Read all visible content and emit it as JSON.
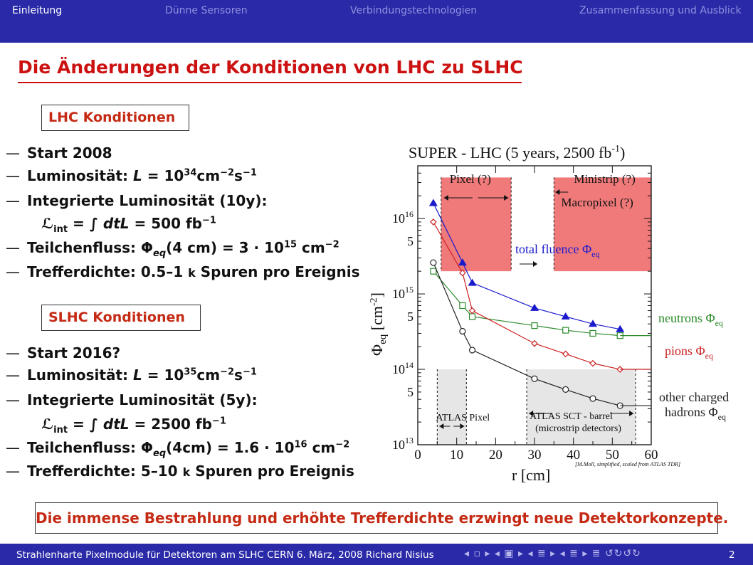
{
  "nav": {
    "items": [
      "Einleitung",
      "Dünne Sensoren",
      "Verbindungstechnologien",
      "Zusammenfassung und Ausblick"
    ],
    "active": "Einleitung"
  },
  "title": "Die Änderungen der Konditionen von LHC zu SLHC",
  "lhc": {
    "header": "LHC Konditionen",
    "start": "Start 2008",
    "lumi_label": "Luminosität:",
    "lumi_symbol": "L",
    "lumi_base": "10",
    "lumi_exp": "34",
    "lumi_unit_cm": "cm",
    "lumi_unit_cm_exp": "−2",
    "lumi_unit_s": "s",
    "lumi_unit_s_exp": "−1",
    "int_label": "Integrierte Luminosität (10y):",
    "int_symbol": "ℒ",
    "int_sub": "int",
    "int_integral": "= ∫ dtL =",
    "int_value": "500",
    "int_unit": "fb",
    "int_unit_exp": "−1",
    "flux_label": "Teilchenfluss:",
    "flux_symbol": "Φ",
    "flux_sub": "eq",
    "flux_arg": "(4 cm) = 3 · 10",
    "flux_exp": "15",
    "flux_unit": "cm",
    "flux_unit_exp": "−2",
    "hit_label": "Trefferdichte: 0.5–1",
    "hit_k": "k",
    "hit_rest": "Spuren pro Ereignis"
  },
  "slhc": {
    "header": "SLHC Konditionen",
    "start": "Start 2016?",
    "lumi_label": "Luminosität:",
    "lumi_symbol": "L",
    "lumi_base": "10",
    "lumi_exp": "35",
    "lumi_unit_cm": "cm",
    "lumi_unit_cm_exp": "−2",
    "lumi_unit_s": "s",
    "lumi_unit_s_exp": "−1",
    "int_label": "Integrierte Luminosität (5y):",
    "int_symbol": "ℒ",
    "int_sub": "int",
    "int_integral": "= ∫ dtL =",
    "int_value": "2500",
    "int_unit": "fb",
    "int_unit_exp": "−1",
    "flux_label": "Teilchenfluss:",
    "flux_symbol": "Φ",
    "flux_sub": "eq",
    "flux_arg": "(4cm) = 1.6 · 10",
    "flux_exp": "16",
    "flux_unit": "cm",
    "flux_unit_exp": "−2",
    "hit_label": "Trefferdichte: 5–10",
    "hit_k": "k",
    "hit_rest": "Spuren pro Ereignis"
  },
  "conclusion": "Die immense Bestrahlung und erhöhte Trefferdichte erzwingt neue Detektorkonzepte.",
  "footer": {
    "text": "Strahlenharte Pixelmodule für Detektoren am SLHC  CERN  6. März, 2008  Richard Nisius",
    "nav_symbols": "◂ ▫ ▸ ◂ ▣ ▸ ◂ ≣ ▸ ◂ ≣ ▸   ≣   ↺↻↺↻",
    "page": "2"
  },
  "colors": {
    "bar": "#2a2aa8",
    "title": "#cc1111",
    "total": "#1a1acc",
    "neutrons": "#2a8a2a",
    "pions": "#cc2222",
    "other": "#222222",
    "region_red": "#f07a7a",
    "region_gray": "#e6e6e6"
  },
  "chart_data": {
    "type": "line",
    "title": "SUPER - LHC (5 years, 2500 fb",
    "title_exp": "-1",
    "title_close": ")",
    "xlabel": "r [cm]",
    "ylabel_symbol": "Φ",
    "ylabel_sub": "eq",
    "ylabel_rest": " [cm",
    "ylabel_exp": "-2",
    "ylabel_close": "]",
    "xlim": [
      0,
      60
    ],
    "ylim": [
      10000000000000.0,
      5e+16
    ],
    "yscale": "log",
    "x_ticks": [
      0,
      10,
      20,
      30,
      40,
      50,
      60
    ],
    "y_tick_labels": [
      {
        "value": 1e+16,
        "base": "10",
        "exp": "16"
      },
      {
        "value": 5000000000000000.0,
        "base": "5",
        "exp": ""
      },
      {
        "value": 1000000000000000.0,
        "base": "10",
        "exp": "15"
      },
      {
        "value": 500000000000000.0,
        "base": "5",
        "exp": ""
      },
      {
        "value": 100000000000000.0,
        "base": "10",
        "exp": "14"
      },
      {
        "value": 50000000000000.0,
        "base": "5",
        "exp": ""
      },
      {
        "value": 10000000000000.0,
        "base": "10",
        "exp": "13"
      }
    ],
    "series": [
      {
        "key": "total",
        "label": "total fluence Φ",
        "label_sub": "eq",
        "marker": "triangle",
        "x": [
          4,
          11.5,
          14,
          30,
          38,
          45,
          52
        ],
        "y": [
          1.6e+16,
          2600000000000000.0,
          1400000000000000.0,
          650000000000000.0,
          500000000000000.0,
          400000000000000.0,
          340000000000000.0
        ]
      },
      {
        "key": "neutrons",
        "label": "neutrons Φ",
        "label_sub": "eq",
        "marker": "square",
        "x": [
          4,
          11.5,
          14,
          30,
          38,
          45,
          52
        ],
        "y": [
          2000000000000000.0,
          700000000000000.0,
          500000000000000.0,
          380000000000000.0,
          330000000000000.0,
          300000000000000.0,
          280000000000000.0
        ]
      },
      {
        "key": "pions",
        "label": "pions Φ",
        "label_sub": "eq",
        "marker": "diamond",
        "x": [
          4,
          11.5,
          14,
          30,
          38,
          45,
          52
        ],
        "y": [
          9000000000000000.0,
          1900000000000000.0,
          600000000000000.0,
          220000000000000.0,
          160000000000000.0,
          120000000000000.0,
          100000000000000.0
        ]
      },
      {
        "key": "other",
        "label1": "other charged",
        "label2": "hadrons Φ",
        "label_sub": "eq",
        "marker": "circle",
        "x": [
          4,
          11.5,
          14,
          30,
          38,
          45,
          52
        ],
        "y": [
          2600000000000000.0,
          320000000000000.0,
          180000000000000.0,
          75000000000000.0,
          54000000000000.0,
          41000000000000.0,
          33000000000000.0
        ]
      }
    ],
    "regions": [
      {
        "label": "Pixel (?)",
        "x": [
          6,
          24
        ],
        "y": [
          2000000000000000.0,
          3.5e+16
        ],
        "color": "red"
      },
      {
        "label": "Ministrip (?)",
        "label2": "Macropixel (?)",
        "x": [
          35,
          60
        ],
        "y": [
          2000000000000000.0,
          3.5e+16
        ],
        "color": "red"
      },
      {
        "label": "ATLAS Pixel",
        "x": [
          5,
          12.5
        ],
        "y": [
          10000000000000.0,
          100000000000000.0
        ],
        "color": "gray"
      },
      {
        "label": "ATLAS SCT - barrel",
        "label2": "(microstrip detectors)",
        "x": [
          28,
          56
        ],
        "y": [
          10000000000000.0,
          100000000000000.0
        ],
        "color": "gray"
      }
    ],
    "credit": "[M.Moll, simplified, scaled from ATLAS TDR]"
  }
}
